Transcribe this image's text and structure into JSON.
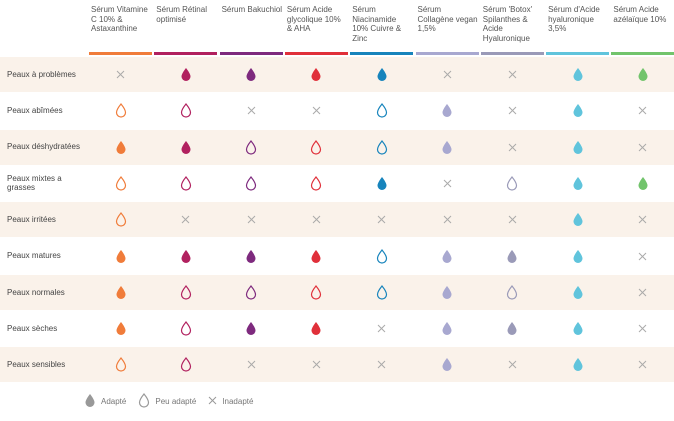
{
  "columns": [
    {
      "label": "Sérum Vitamine C 10% & Astaxanthine",
      "color": "#f07c3a"
    },
    {
      "label": "Sérum Rétinal optimisé",
      "color": "#b1215f"
    },
    {
      "label": "Sérum Bakuchiol",
      "color": "#7e2a7e"
    },
    {
      "label": "Sérum Acide glycolique 10% & AHA",
      "color": "#e0303a"
    },
    {
      "label": "Sérum Niacinamide 10% Cuivre & Zinc",
      "color": "#1784bc"
    },
    {
      "label": "Sérum Collagène vegan 1,5%",
      "color": "#a8a8d0"
    },
    {
      "label": "Sérum 'Botox' Spilanthes & Acide Hyaluronique",
      "color": "#9a9ab8"
    },
    {
      "label": "Sérum d'Acide hyaluronique 3,5%",
      "color": "#60c4dc"
    },
    {
      "label": "Sérum Acide azélaïque 10%",
      "color": "#72c46c"
    }
  ],
  "rows": [
    {
      "label": "Peaux à problèmes",
      "values": [
        "x",
        "a",
        "a",
        "a",
        "a",
        "x",
        "x",
        "a",
        "a"
      ]
    },
    {
      "label": "Peaux abîmées",
      "values": [
        "p",
        "p",
        "x",
        "x",
        "p",
        "a",
        "x",
        "a",
        "x"
      ]
    },
    {
      "label": "Peaux déshydratées",
      "values": [
        "a",
        "a",
        "p",
        "p",
        "p",
        "a",
        "x",
        "a",
        "x"
      ]
    },
    {
      "label": "Peaux mixtes a grasses",
      "values": [
        "p",
        "p",
        "p",
        "p",
        "a",
        "x",
        "p",
        "a",
        "a"
      ]
    },
    {
      "label": "Peaux irritées",
      "values": [
        "p",
        "x",
        "x",
        "x",
        "x",
        "x",
        "x",
        "a",
        "x"
      ]
    },
    {
      "label": "Peaux matures",
      "values": [
        "a",
        "a",
        "a",
        "a",
        "p",
        "a",
        "a",
        "a",
        "x"
      ]
    },
    {
      "label": "Peaux normales",
      "values": [
        "a",
        "p",
        "p",
        "p",
        "p",
        "a",
        "p",
        "a",
        "x"
      ]
    },
    {
      "label": "Peaux sèches",
      "values": [
        "a",
        "p",
        "a",
        "a",
        "x",
        "a",
        "a",
        "a",
        "x"
      ]
    },
    {
      "label": "Peaux sensibles",
      "values": [
        "p",
        "p",
        "x",
        "x",
        "x",
        "a",
        "x",
        "a",
        "x"
      ]
    }
  ],
  "legend": {
    "adapted": "Adapté",
    "partial": "Peu adapté",
    "unsuited": "Inadapté",
    "legend_color": "#999999",
    "cross_color": "#aaaaaa"
  }
}
